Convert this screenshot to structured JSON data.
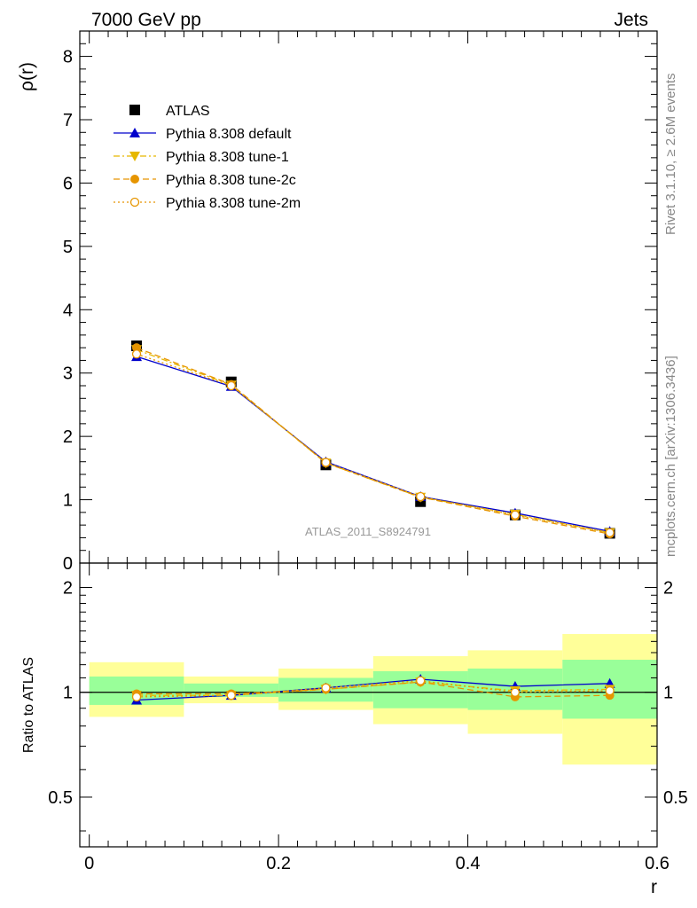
{
  "header": {
    "left": "7000 GeV pp",
    "right": "Jets"
  },
  "side_labels": {
    "top": "Rivet 3.1.10, ≥ 2.6M events",
    "bottom": "mcplots.cern.ch [arXiv:1306.3436]"
  },
  "watermark": "ATLAS_2011_S8924791",
  "chart_data": [
    {
      "type": "line",
      "panel": "main",
      "xlabel": "r",
      "ylabel": "ρ(r)",
      "xlim": [
        -0.01,
        0.6
      ],
      "ylim": [
        0,
        8.4
      ],
      "yticks": [
        0,
        1,
        2,
        3,
        4,
        5,
        6,
        7,
        8
      ],
      "xticks": [
        0,
        0.2,
        0.4,
        0.6
      ],
      "legend_position": "top-left",
      "x": [
        0.05,
        0.15,
        0.25,
        0.35,
        0.45,
        0.55
      ],
      "series": [
        {
          "name": "ATLAS",
          "style": "data",
          "color": "#000000",
          "marker": "square",
          "values": [
            3.43,
            2.86,
            1.55,
            0.97,
            0.76,
            0.47
          ]
        },
        {
          "name": "Pythia 8.308 default",
          "style": "solid",
          "color": "#0000cc",
          "marker": "triangle-up",
          "values": [
            3.26,
            2.79,
            1.6,
            1.05,
            0.79,
            0.5
          ]
        },
        {
          "name": "Pythia 8.308 tune-1",
          "style": "dashdot",
          "color": "#e6b800",
          "marker": "triangle-down",
          "values": [
            3.37,
            2.81,
            1.58,
            1.04,
            0.77,
            0.48
          ]
        },
        {
          "name": "Pythia 8.308 tune-2c",
          "style": "dashed",
          "color": "#e69500",
          "marker": "circle-filled",
          "values": [
            3.4,
            2.82,
            1.58,
            1.04,
            0.74,
            0.46
          ]
        },
        {
          "name": "Pythia 8.308 tune-2m",
          "style": "dotted",
          "color": "#e69500",
          "marker": "circle-open",
          "values": [
            3.3,
            2.8,
            1.59,
            1.05,
            0.76,
            0.48
          ]
        }
      ]
    },
    {
      "type": "line",
      "panel": "ratio",
      "xlabel": "r",
      "ylabel": "Ratio to ATLAS",
      "xlim": [
        -0.01,
        0.6
      ],
      "ylim": [
        0.36,
        2.35
      ],
      "yticks": [
        0.5,
        1,
        2
      ],
      "xticks": [
        0,
        0.2,
        0.4,
        0.6
      ],
      "reference": 1,
      "bands": {
        "bins": [
          [
            0.0,
            0.1
          ],
          [
            0.1,
            0.2
          ],
          [
            0.2,
            0.3
          ],
          [
            0.3,
            0.4
          ],
          [
            0.4,
            0.5
          ],
          [
            0.5,
            0.6
          ]
        ],
        "yellow": [
          [
            0.85,
            1.22
          ],
          [
            0.93,
            1.11
          ],
          [
            0.89,
            1.17
          ],
          [
            0.81,
            1.27
          ],
          [
            0.76,
            1.32
          ],
          [
            0.62,
            1.47
          ]
        ],
        "green": [
          [
            0.92,
            1.11
          ],
          [
            0.97,
            1.06
          ],
          [
            0.94,
            1.1
          ],
          [
            0.9,
            1.15
          ],
          [
            0.89,
            1.17
          ],
          [
            0.84,
            1.24
          ]
        ],
        "colors": {
          "yellow": "#ffff99",
          "green": "#99ff99"
        }
      },
      "x": [
        0.05,
        0.15,
        0.25,
        0.35,
        0.45,
        0.55
      ],
      "series": [
        {
          "name": "Pythia 8.308 default",
          "style": "solid",
          "color": "#0000cc",
          "marker": "triangle-up",
          "values": [
            0.95,
            0.98,
            1.03,
            1.09,
            1.04,
            1.06
          ]
        },
        {
          "name": "Pythia 8.308 tune-1",
          "style": "dashdot",
          "color": "#e6b800",
          "marker": "triangle-down",
          "values": [
            0.98,
            0.98,
            1.02,
            1.07,
            1.01,
            1.02
          ]
        },
        {
          "name": "Pythia 8.308 tune-2c",
          "style": "dashed",
          "color": "#e69500",
          "marker": "circle-filled",
          "values": [
            0.99,
            0.99,
            1.02,
            1.07,
            0.97,
            0.98
          ]
        },
        {
          "name": "Pythia 8.308 tune-2m",
          "style": "dotted",
          "color": "#e69500",
          "marker": "circle-open",
          "values": [
            0.97,
            0.98,
            1.03,
            1.08,
            1.0,
            1.01
          ]
        }
      ]
    }
  ]
}
